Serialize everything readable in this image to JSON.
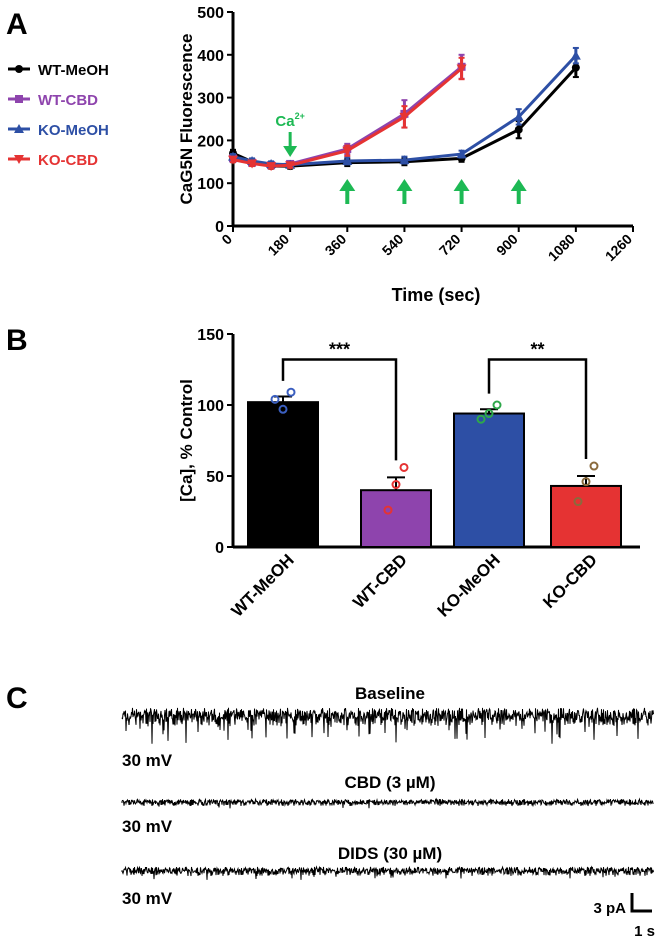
{
  "colors": {
    "wt_meoh": "#000000",
    "wt_cbd": "#8e44ad",
    "ko_meoh": "#2d4fa5",
    "ko_cbd": "#e53333",
    "ca_arrow": "#1db954"
  },
  "panels": {
    "a": "A",
    "b": "B",
    "c": "C"
  },
  "chart_data": [
    {
      "type": "line",
      "title": "",
      "xlabel": "Time (sec)",
      "ylabel": "CaG5N Fluorescence",
      "xlim": [
        0,
        1260
      ],
      "ylim": [
        0,
        500
      ],
      "xticks": [
        "0",
        "180",
        "360",
        "540",
        "720",
        "900",
        "1080",
        "1260"
      ],
      "yticks": [
        "0",
        "100",
        "200",
        "300",
        "400",
        "500"
      ],
      "annotation": {
        "label": "Ca",
        "superscript": "2+",
        "x": 180
      },
      "stimulus_times": [
        360,
        540,
        720,
        900
      ],
      "series": [
        {
          "name": "WT-MeOH",
          "color": "#000000",
          "marker": "circle",
          "x": [
            0,
            60,
            120,
            180,
            360,
            540,
            720,
            900,
            1080
          ],
          "y": [
            170,
            150,
            140,
            140,
            148,
            150,
            158,
            225,
            370
          ],
          "err": [
            8,
            6,
            6,
            6,
            8,
            8,
            8,
            20,
            22
          ]
        },
        {
          "name": "WT-CBD",
          "color": "#8e44ad",
          "marker": "square",
          "x": [
            0,
            60,
            120,
            180,
            360,
            540,
            720
          ],
          "y": [
            158,
            148,
            142,
            145,
            180,
            262,
            372
          ],
          "err": [
            6,
            6,
            6,
            6,
            12,
            32,
            28
          ]
        },
        {
          "name": "KO-MeOH",
          "color": "#2d4fa5",
          "marker": "triangle-up",
          "x": [
            0,
            60,
            120,
            180,
            360,
            540,
            720,
            900,
            1080
          ],
          "y": [
            162,
            152,
            145,
            143,
            152,
            154,
            168,
            255,
            398
          ],
          "err": [
            6,
            6,
            6,
            6,
            8,
            8,
            8,
            18,
            18
          ]
        },
        {
          "name": "KO-CBD",
          "color": "#e53333",
          "marker": "triangle-down",
          "x": [
            0,
            60,
            120,
            180,
            360,
            540,
            720
          ],
          "y": [
            155,
            146,
            140,
            142,
            176,
            255,
            368
          ],
          "err": [
            6,
            6,
            6,
            6,
            12,
            25,
            25
          ]
        }
      ]
    },
    {
      "type": "bar",
      "title": "",
      "xlabel": "",
      "ylabel": "[Ca], % Control",
      "ylim": [
        0,
        150
      ],
      "yticks": [
        "0",
        "50",
        "100",
        "150"
      ],
      "categories": [
        "WT-MeOH",
        "WT-CBD",
        "KO-MeOH",
        "KO-CBD"
      ],
      "values": [
        102,
        40,
        94,
        43
      ],
      "sem": [
        4,
        9,
        3,
        7
      ],
      "colors": [
        "#000000",
        "#8e44ad",
        "#2d4fa5",
        "#e53333"
      ],
      "points": [
        [
          104,
          97,
          109
        ],
        [
          26,
          44,
          56
        ],
        [
          90,
          94,
          100
        ],
        [
          32,
          46,
          57
        ]
      ],
      "point_colors": [
        [
          "#3b5fc0",
          "#3b5fc0",
          "#3b5fc0"
        ],
        [
          "#e53333",
          "#e53333",
          "#e53333"
        ],
        [
          "#2ea84a",
          "#2ea84a",
          "#2ea84a"
        ],
        [
          "#8a6a3c",
          "#8a6a3c",
          "#8a6a3c"
        ]
      ],
      "significance": [
        {
          "pair": [
            0,
            1
          ],
          "label": "***",
          "level": 132
        },
        {
          "pair": [
            2,
            3
          ],
          "label": "**",
          "level": 132
        }
      ]
    }
  ],
  "traces": [
    {
      "title": "Baseline",
      "scale_label": "30 mV"
    },
    {
      "title": "CBD (3 µM)",
      "scale_label": "30 mV"
    },
    {
      "title": "DIDS (30 µM)",
      "scale_label": "30 mV"
    }
  ],
  "scalebar": {
    "current": "3 pA",
    "time": "1 s"
  }
}
